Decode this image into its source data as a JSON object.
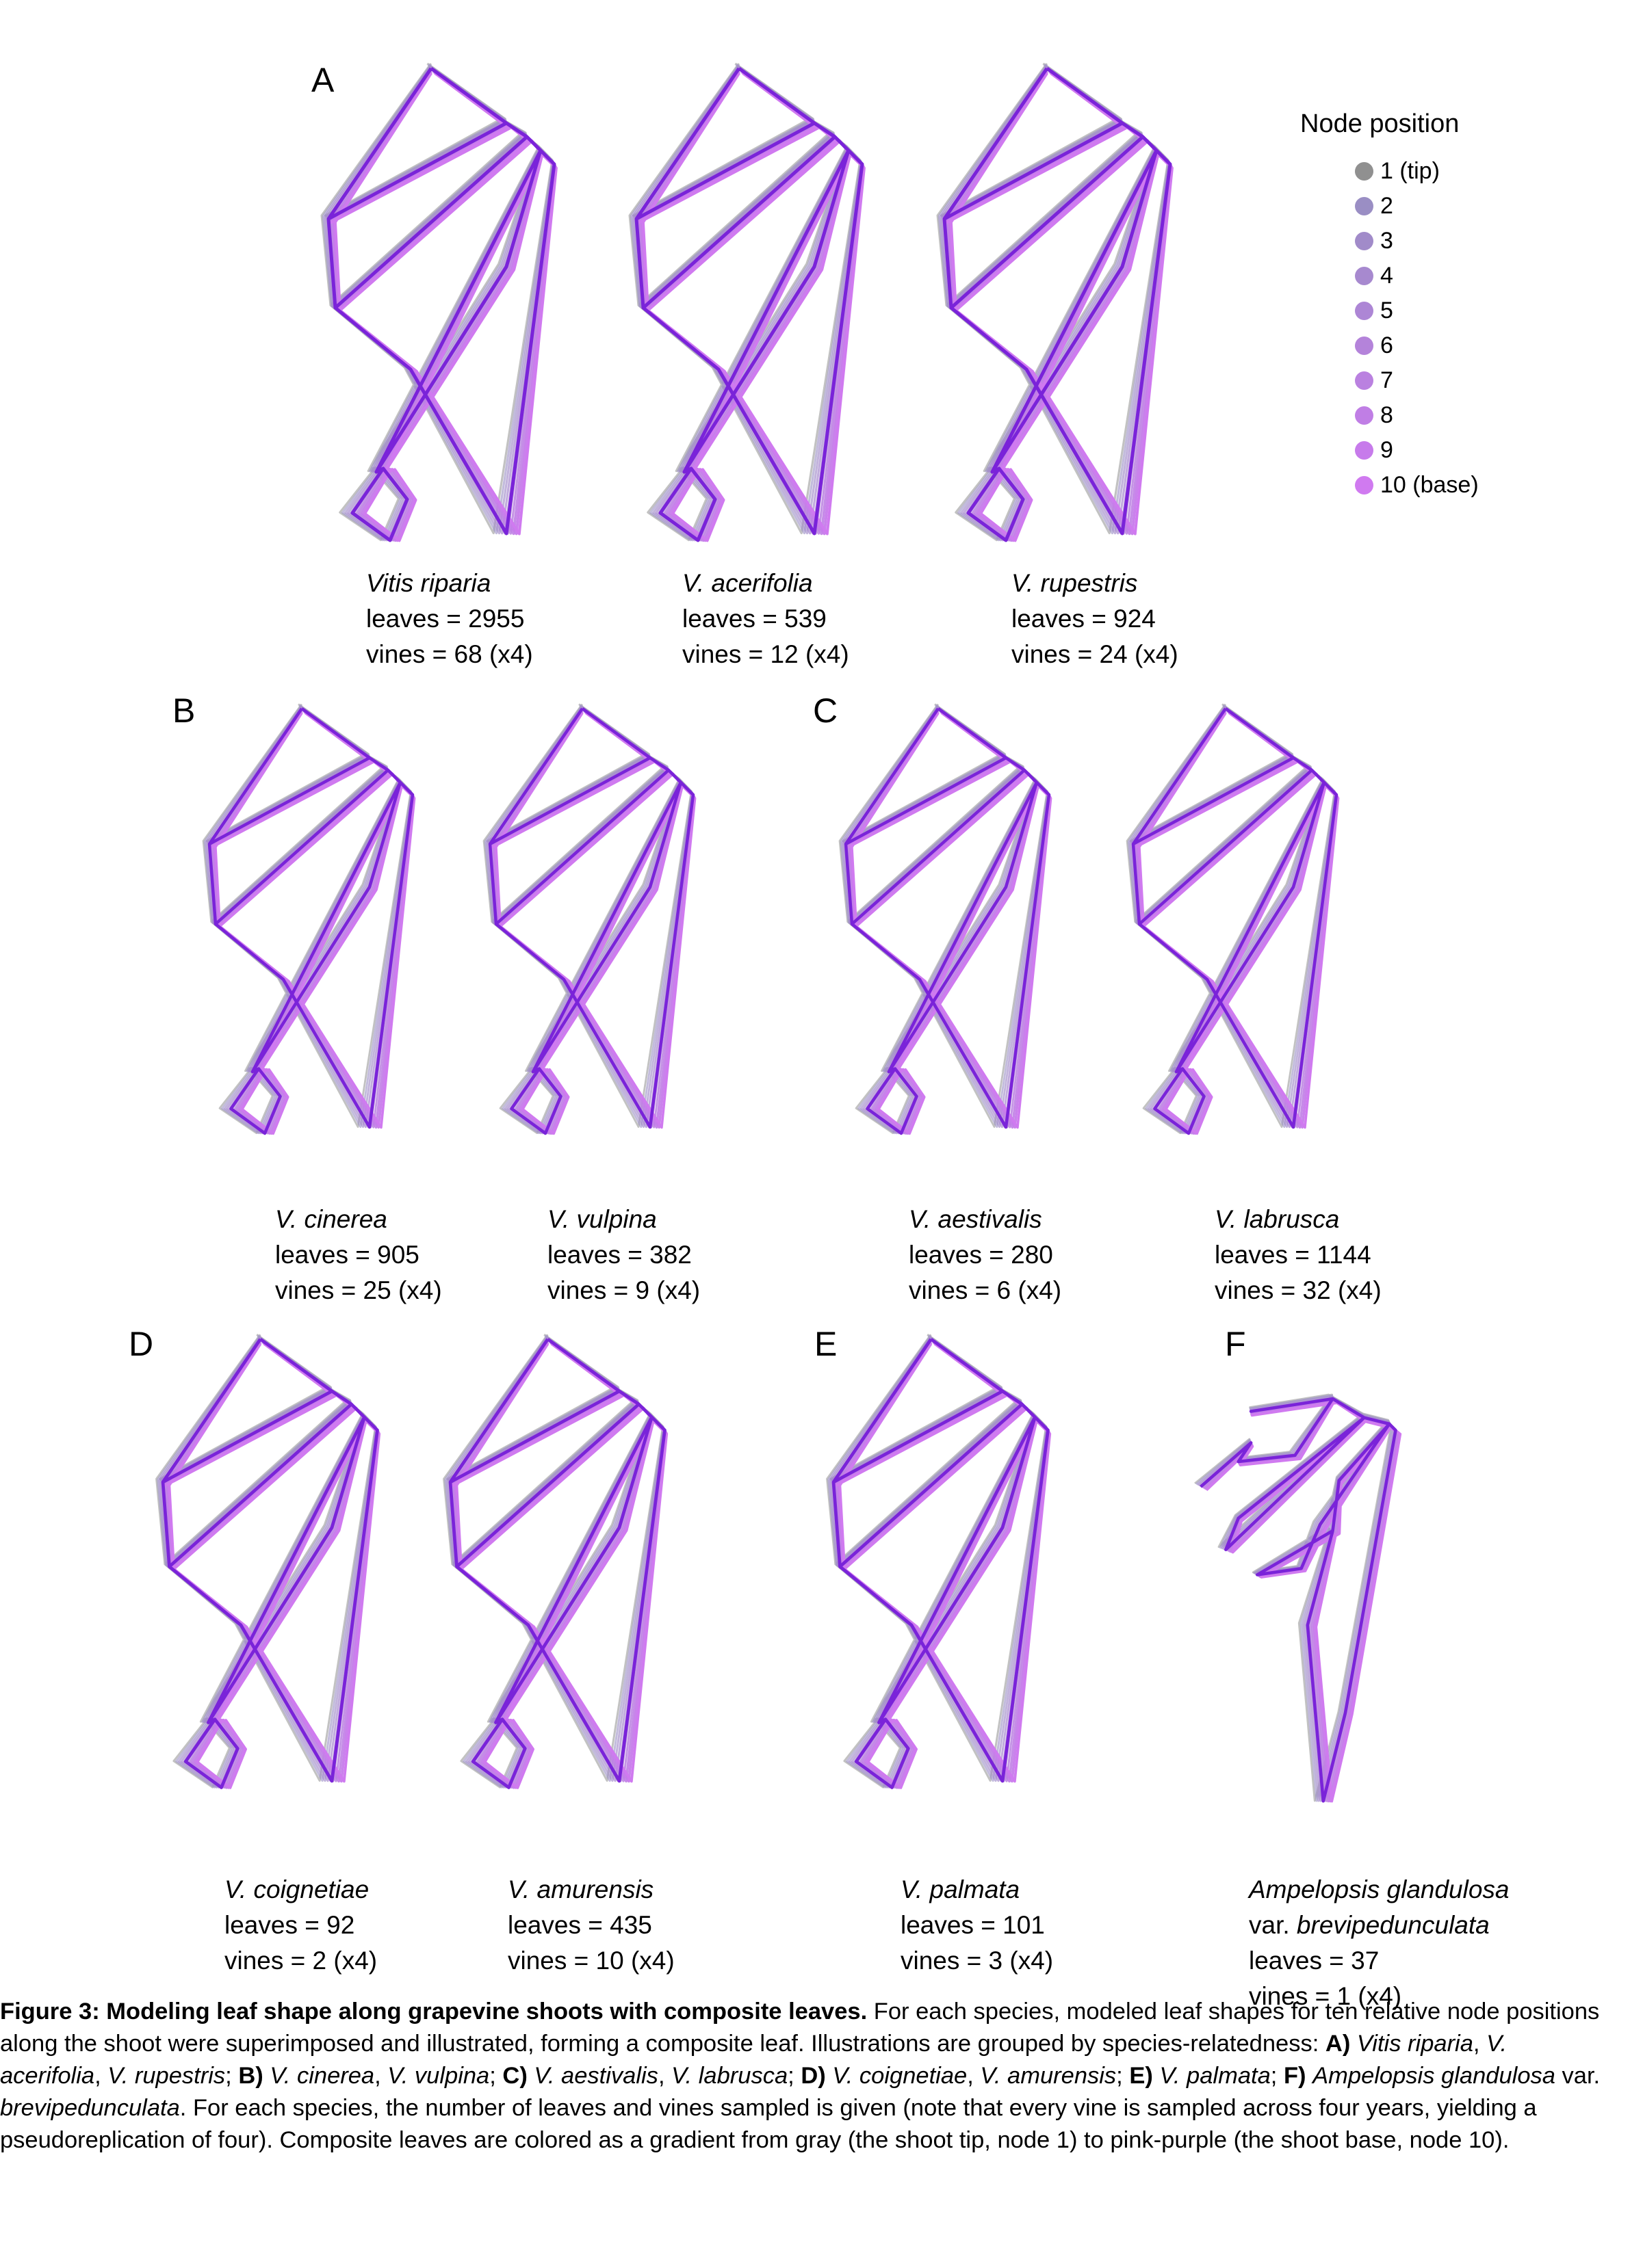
{
  "panels": [
    {
      "label": "A",
      "species": [
        {
          "name_italic": "Vitis riparia",
          "leaves": "leaves = 2955",
          "vines": "vines = 68 (x4)"
        },
        {
          "name_italic": "V. acerifolia",
          "leaves": "leaves = 539",
          "vines": "vines = 12 (x4)"
        },
        {
          "name_italic": "V. rupestris",
          "leaves": "leaves = 924",
          "vines": "vines = 24 (x4)"
        }
      ]
    },
    {
      "label": "B",
      "species": [
        {
          "name_italic": "V. cinerea",
          "leaves": "leaves = 905",
          "vines": "vines = 25 (x4)"
        },
        {
          "name_italic": "V. vulpina",
          "leaves": "leaves = 382",
          "vines": "vines = 9 (x4)"
        }
      ]
    },
    {
      "label": "C",
      "species": [
        {
          "name_italic": "V. aestivalis",
          "leaves": "leaves = 280",
          "vines": "vines = 6 (x4)"
        },
        {
          "name_italic": "V. labrusca",
          "leaves": "leaves = 1144",
          "vines": "vines = 32 (x4)"
        }
      ]
    },
    {
      "label": "D",
      "species": [
        {
          "name_italic": "V. coignetiae",
          "leaves": "leaves = 92",
          "vines": "vines = 2 (x4)"
        },
        {
          "name_italic": "V. amurensis",
          "leaves": "leaves = 435",
          "vines": "vines = 10 (x4)"
        }
      ]
    },
    {
      "label": "E",
      "species": [
        {
          "name_italic": "V. palmata",
          "leaves": "leaves = 101",
          "vines": "vines = 3 (x4)"
        }
      ]
    },
    {
      "label": "F",
      "species": [
        {
          "name_italic": "Ampelopsis glandulosa",
          "var_prefix": "var. ",
          "var_italic": "brevipedunculata",
          "leaves": "leaves = 37",
          "vines": "vines = 1 (x4)"
        }
      ]
    }
  ],
  "legend": {
    "title": "Node position",
    "items": [
      {
        "label": "1 (tip)",
        "color": "#909090"
      },
      {
        "label": "2",
        "color": "#9a8ec4"
      },
      {
        "label": "3",
        "color": "#a18bc9"
      },
      {
        "label": "4",
        "color": "#a789cf"
      },
      {
        "label": "5",
        "color": "#ad86d5"
      },
      {
        "label": "6",
        "color": "#b483da"
      },
      {
        "label": "7",
        "color": "#ba81e0"
      },
      {
        "label": "8",
        "color": "#c07ee5"
      },
      {
        "label": "9",
        "color": "#c77beb"
      },
      {
        "label": "10 (base)",
        "color": "#d07af0"
      }
    ]
  },
  "caption": {
    "title": "Figure 3: Modeling leaf shape along grapevine shoots with composite leaves.",
    "t1": " For each species, modeled leaf shapes for ten relative node positions along the shoot were superimposed and illustrated, forming a composite leaf. Illustrations are grouped by species-relatedness: ",
    "a": "A)",
    "a_sp": "Vitis riparia",
    "sep1": ", ",
    "a_sp2": "V. acerifolia",
    "sep2": ", ",
    "a_sp3": "V. rupestris",
    "sep3": "; ",
    "b": "B)",
    "b_sp": "V. cinerea",
    "sep4": ", ",
    "b_sp2": "V. vulpina",
    "sep5": "; ",
    "c": "C)",
    "c_sp": "V. aestivalis",
    "sep6": ", ",
    "c_sp2": "V. labrusca",
    "sep7": "; ",
    "d": "D)",
    "d_sp": "V. coignetiae",
    "sep8": ", ",
    "d_sp2": "V. amurensis",
    "sep9": "; ",
    "e": "E)",
    "e_sp": "V. palmata",
    "sep10": "; ",
    "f": "F)",
    "f_sp": "Ampelopsis glandulosa",
    "f_var": " var. ",
    "f_sp2": "brevipedunculata",
    "t2": ". For each species, the number of leaves and vines sampled is given (note that every vine is sampled across four years, yielding a pseudoreplication of four). Composite leaves are colored as a gradient from gray (the shoot tip, node 1) to pink-purple (the shoot base, node 10)."
  }
}
